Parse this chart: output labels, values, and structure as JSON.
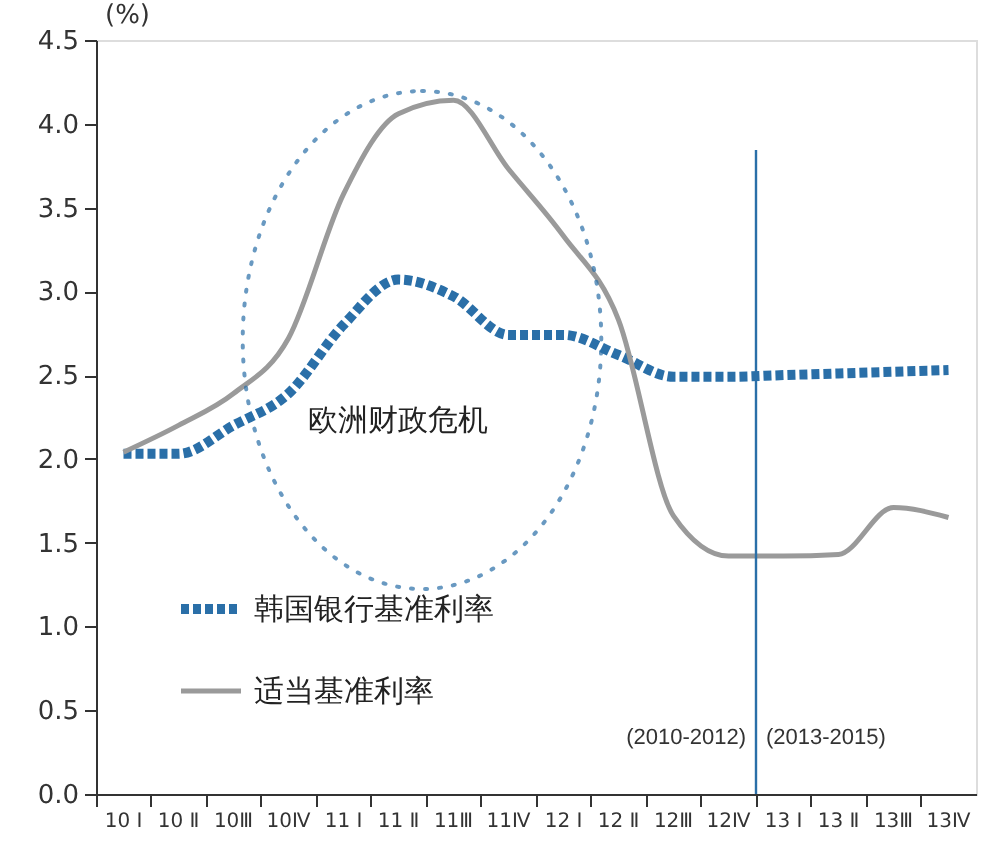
{
  "chart_data": {
    "type": "line",
    "ylabel": "(%)",
    "categories": [
      "10 Ⅰ",
      "10 Ⅱ",
      "10Ⅲ",
      "10Ⅳ",
      "11 Ⅰ",
      "11 Ⅱ",
      "11Ⅲ",
      "11Ⅳ",
      "12 Ⅰ",
      "12 Ⅱ",
      "12Ⅲ",
      "12Ⅳ",
      "13 Ⅰ",
      "13 Ⅱ",
      "13Ⅲ",
      "13Ⅳ"
    ],
    "series": [
      {
        "name": "韩国银行基准利率",
        "color": "#2a6fa8",
        "line_style": "dotted",
        "values": [
          2.03,
          2.03,
          2.2,
          2.39,
          2.8,
          3.07,
          2.97,
          2.74,
          2.74,
          2.62,
          2.49,
          2.49,
          2.5,
          2.51,
          2.52,
          2.53
        ]
      },
      {
        "name": "适当基准利率",
        "color": "#9a9a9a",
        "line_style": "solid",
        "values": [
          2.04,
          2.2,
          2.39,
          2.72,
          3.58,
          4.06,
          4.14,
          3.73,
          3.33,
          2.83,
          1.66,
          1.42,
          1.42,
          1.43,
          1.71,
          1.65
        ]
      }
    ],
    "ylim": [
      0,
      4.5
    ],
    "yticks": [
      {
        "value": 0,
        "label": "0.0"
      },
      {
        "value": 0.5,
        "label": "0.5"
      },
      {
        "value": 1,
        "label": "1.0"
      },
      {
        "value": 1.5,
        "label": "1.5"
      },
      {
        "value": 2,
        "label": "2.0"
      },
      {
        "value": 2.5,
        "label": "2.5"
      },
      {
        "value": 3,
        "label": "3.0"
      },
      {
        "value": 3.5,
        "label": "3.5"
      },
      {
        "value": 4,
        "label": "4.0"
      },
      {
        "value": 4.5,
        "label": "4.5"
      }
    ],
    "ref_lines": [
      {
        "axis": "x",
        "value": "13 Ⅰ",
        "color": "#2a6fa8"
      }
    ],
    "annotations": [
      "欧洲财政危机",
      "(2010-2012)",
      "(2013-2015)"
    ],
    "grid": false,
    "legend": "bottom left",
    "marker": "none"
  }
}
